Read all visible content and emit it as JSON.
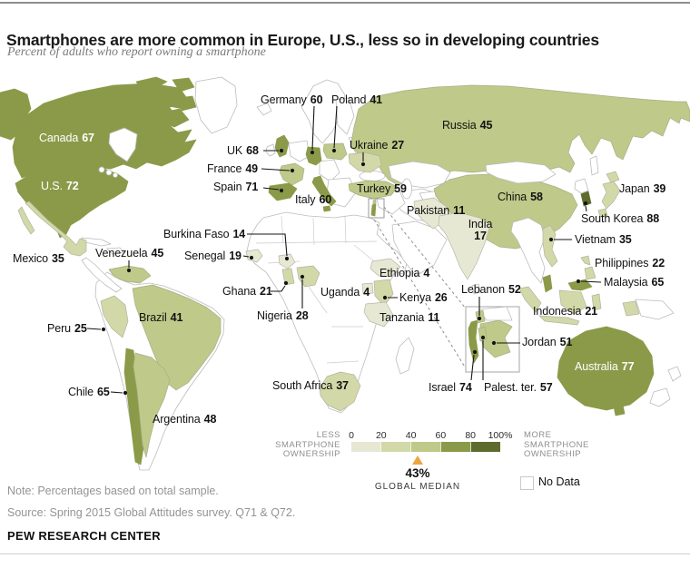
{
  "header": {
    "title": "Smartphones are more common in Europe, U.S., less so in developing countries",
    "subtitle": "Percent of adults who report owning a smartphone"
  },
  "chart_data": {
    "type": "choropleth_map",
    "title": "Smartphones are more common in Europe, U.S., less so in developing countries",
    "unit": "percent of adults who report owning a smartphone",
    "countries": [
      {
        "name": "Canada",
        "value": 67
      },
      {
        "name": "U.S.",
        "value": 72
      },
      {
        "name": "Mexico",
        "value": 35
      },
      {
        "name": "Venezuela",
        "value": 45
      },
      {
        "name": "Peru",
        "value": 25
      },
      {
        "name": "Brazil",
        "value": 41
      },
      {
        "name": "Chile",
        "value": 65
      },
      {
        "name": "Argentina",
        "value": 48
      },
      {
        "name": "UK",
        "value": 68
      },
      {
        "name": "France",
        "value": 49
      },
      {
        "name": "Spain",
        "value": 71
      },
      {
        "name": "Germany",
        "value": 60
      },
      {
        "name": "Poland",
        "value": 41
      },
      {
        "name": "Italy",
        "value": 60
      },
      {
        "name": "Ukraine",
        "value": 27
      },
      {
        "name": "Russia",
        "value": 45
      },
      {
        "name": "Turkey",
        "value": 59
      },
      {
        "name": "Pakistan",
        "value": 11
      },
      {
        "name": "India",
        "value": 17
      },
      {
        "name": "China",
        "value": 58
      },
      {
        "name": "Japan",
        "value": 39
      },
      {
        "name": "South Korea",
        "value": 88
      },
      {
        "name": "Vietnam",
        "value": 35
      },
      {
        "name": "Philippines",
        "value": 22
      },
      {
        "name": "Malaysia",
        "value": 65
      },
      {
        "name": "Indonesia",
        "value": 21
      },
      {
        "name": "Burkina Faso",
        "value": 14
      },
      {
        "name": "Senegal",
        "value": 19
      },
      {
        "name": "Ghana",
        "value": 21
      },
      {
        "name": "Nigeria",
        "value": 28
      },
      {
        "name": "Uganda",
        "value": 4
      },
      {
        "name": "Ethiopia",
        "value": 4
      },
      {
        "name": "Kenya",
        "value": 26
      },
      {
        "name": "Tanzania",
        "value": 11
      },
      {
        "name": "South Africa",
        "value": 37
      },
      {
        "name": "Lebanon",
        "value": 52
      },
      {
        "name": "Jordan",
        "value": 51
      },
      {
        "name": "Israel",
        "value": 74
      },
      {
        "name": "Palest. ter.",
        "value": 57
      },
      {
        "name": "Australia",
        "value": 77
      }
    ],
    "legend": {
      "less_label": "LESS SMARTPHONE OWNERSHIP",
      "more_label": "MORE SMARTPHONE OWNERSHIP",
      "ticks": [
        "0",
        "20",
        "40",
        "60",
        "80",
        "100%"
      ],
      "breaks": [
        0,
        20,
        40,
        60,
        80,
        100
      ],
      "bracket_colors": [
        "#e7e8d3",
        "#d2d8a8",
        "#bfc989",
        "#8b9a49",
        "#5d6b2d"
      ],
      "global_median_value": "43%",
      "global_median_label": "GLOBAL MEDIAN",
      "marker_color": "#eba63f",
      "no_data_label": "No Data"
    }
  },
  "footer": {
    "note": "Note: Percentages based on total sample.",
    "source": "Source: Spring 2015 Global Attitudes survey. Q71 & Q72.",
    "brand": "PEW RESEARCH CENTER"
  }
}
